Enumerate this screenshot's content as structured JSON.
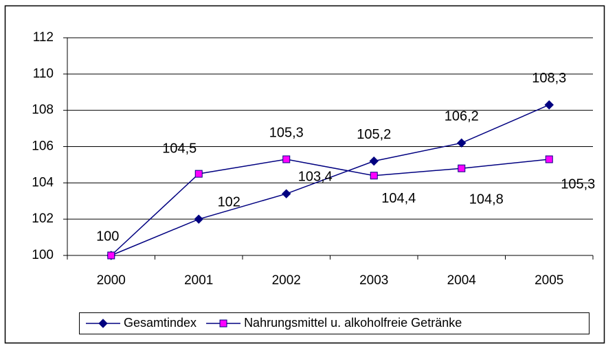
{
  "chart_data": {
    "type": "line",
    "categories": [
      "2000",
      "2001",
      "2002",
      "2003",
      "2004",
      "2005"
    ],
    "series": [
      {
        "name": "Gesamtindex",
        "color": "#000080",
        "marker": "diamond",
        "marker_color": "#000080",
        "values": [
          100,
          102,
          103.4,
          105.2,
          106.2,
          108.3
        ],
        "value_labels": [
          null,
          "102",
          "103,4",
          "105,2",
          "106,2",
          "108,3"
        ]
      },
      {
        "name": "Nahrungsmittel u. alkoholfreie Getränke",
        "color": "#000080",
        "marker": "square",
        "marker_color": "#ff00ff",
        "values": [
          100,
          104.5,
          105.3,
          104.4,
          104.8,
          105.3
        ],
        "value_labels": [
          "100",
          "104,5",
          "105,3",
          "104,4",
          "104,8",
          "105,3"
        ]
      }
    ],
    "ylim": [
      100,
      112
    ],
    "yticks": [
      100,
      102,
      104,
      106,
      108,
      110,
      112
    ],
    "grid": true,
    "legend": "bottom"
  }
}
